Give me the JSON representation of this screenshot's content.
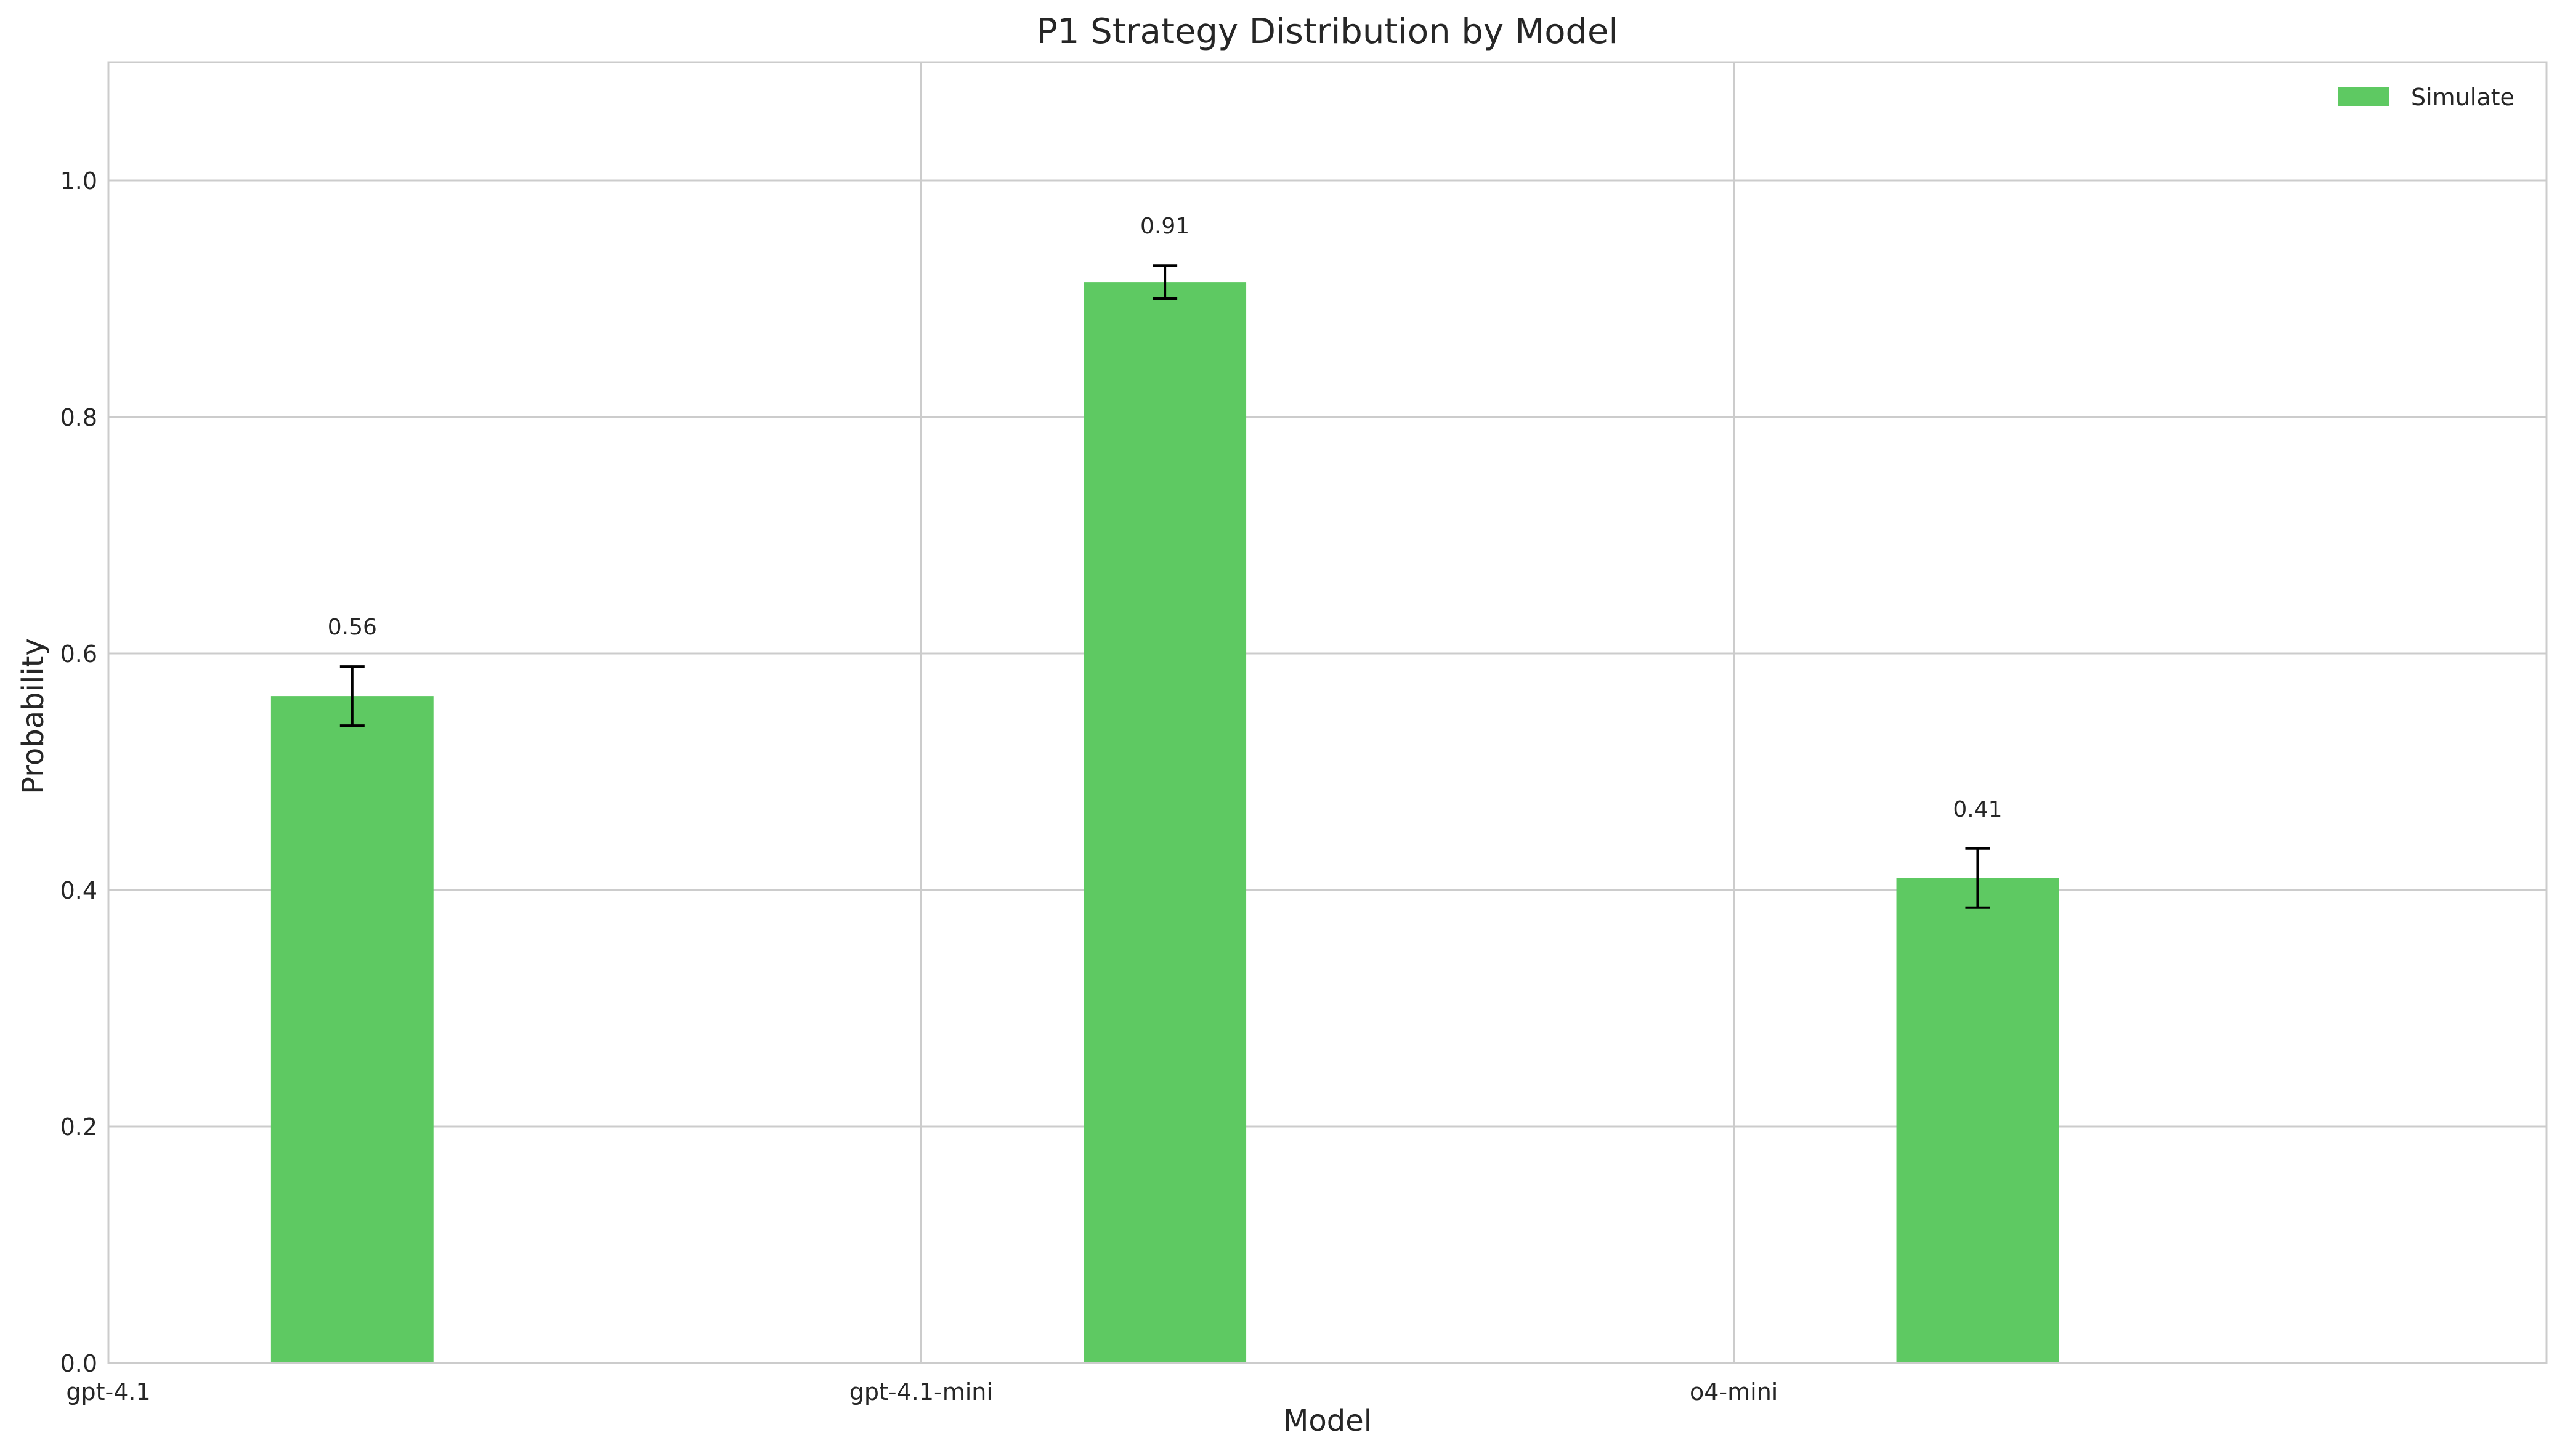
{
  "chart_data": {
    "type": "bar",
    "title": "P1 Strategy Distribution by Model",
    "xlabel": "Model",
    "ylabel": "Probability",
    "categories": [
      "gpt-4.1",
      "gpt-4.1-mini",
      "o4-mini"
    ],
    "series": [
      {
        "name": "Simulate",
        "color": "#5ec962",
        "values": [
          0.564,
          0.914,
          0.41
        ],
        "error": [
          0.025,
          0.014,
          0.025
        ],
        "data_labels": [
          "0.56",
          "0.91",
          "0.41"
        ]
      }
    ],
    "ylim": [
      0,
      1.1
    ],
    "yticks": [
      0.0,
      0.2,
      0.4,
      0.6,
      0.8,
      1.0
    ],
    "ytick_labels": [
      "0.0",
      "0.2",
      "0.4",
      "0.6",
      "0.8",
      "1.0"
    ],
    "grid": true,
    "legend": "top-right"
  }
}
